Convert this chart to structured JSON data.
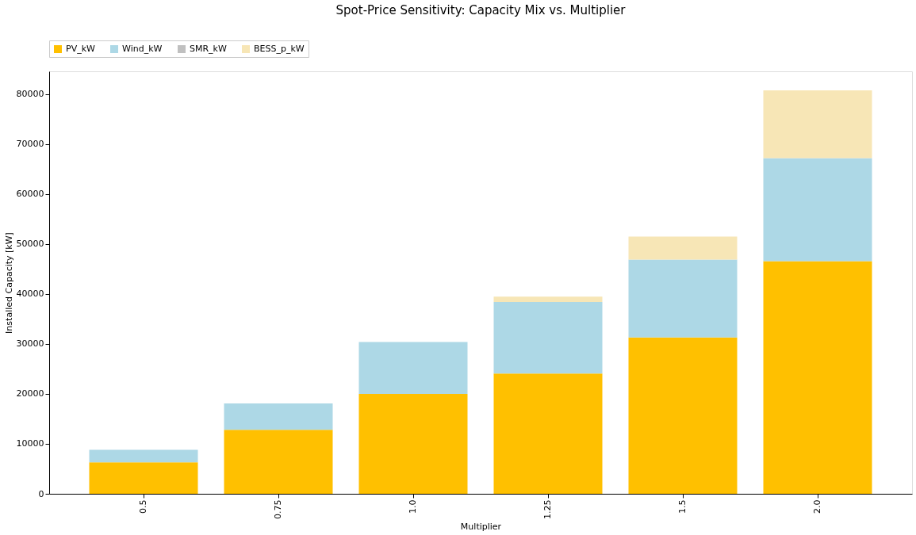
{
  "chart_data": {
    "type": "bar",
    "title": "Spot-Price Sensitivity: Capacity Mix vs. Multiplier",
    "xlabel": "Multiplier",
    "ylabel": "Installed Capacity [kW]",
    "categories": [
      "0.5",
      "0.75",
      "1.0",
      "1.25",
      "1.5",
      "2.0"
    ],
    "stacked": true,
    "series": [
      {
        "name": "PV_kW",
        "color": "#ffc000",
        "values": [
          6300,
          12800,
          20000,
          24100,
          31300,
          46600
        ]
      },
      {
        "name": "Wind_kW",
        "color": "#add8e6",
        "values": [
          2500,
          5300,
          10400,
          14300,
          15600,
          20600
        ]
      },
      {
        "name": "SMR_kW",
        "color": "#c0c0c0",
        "values": [
          0,
          0,
          0,
          0,
          0,
          0
        ]
      },
      {
        "name": "BESS_p_kW",
        "color": "#f7e6b6",
        "values": [
          0,
          0,
          0,
          1100,
          4600,
          13600
        ]
      }
    ],
    "ylim": [
      0,
      84600
    ],
    "yticks": [
      0,
      10000,
      20000,
      30000,
      40000,
      50000,
      60000,
      70000,
      80000
    ],
    "grid": false,
    "legend": "top"
  }
}
